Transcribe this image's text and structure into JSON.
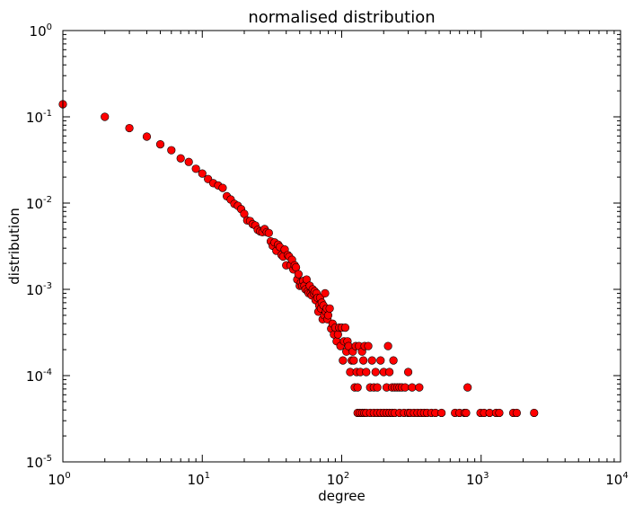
{
  "chart_data": {
    "type": "scatter",
    "title": "normalised distribution",
    "xlabel": "degree",
    "ylabel": "distribution",
    "xscale": "log",
    "yscale": "log",
    "xlim": [
      1,
      10000
    ],
    "ylim": [
      1e-05,
      1
    ],
    "grid": false,
    "marker_color": "#ff0000",
    "marker_edge_color": "#000000",
    "x_ticks": [
      {
        "base": "10",
        "exp": "0"
      },
      {
        "base": "10",
        "exp": "1"
      },
      {
        "base": "10",
        "exp": "2"
      },
      {
        "base": "10",
        "exp": "3"
      },
      {
        "base": "10",
        "exp": "4"
      }
    ],
    "y_ticks": [
      {
        "base": "10",
        "exp": "-5"
      },
      {
        "base": "10",
        "exp": "-4"
      },
      {
        "base": "10",
        "exp": "-3"
      },
      {
        "base": "10",
        "exp": "-2"
      },
      {
        "base": "10",
        "exp": "-1"
      },
      {
        "base": "10",
        "exp": "0"
      }
    ],
    "points": [
      [
        1,
        0.14
      ],
      [
        2,
        0.1
      ],
      [
        3,
        0.074
      ],
      [
        4,
        0.059
      ],
      [
        5,
        0.048
      ],
      [
        6,
        0.041
      ],
      [
        7,
        0.033
      ],
      [
        8,
        0.03
      ],
      [
        9,
        0.025
      ],
      [
        10,
        0.022
      ],
      [
        11,
        0.019
      ],
      [
        12,
        0.017
      ],
      [
        13,
        0.016
      ],
      [
        14,
        0.015
      ],
      [
        15,
        0.012
      ],
      [
        16,
        0.011
      ],
      [
        17,
        0.0098
      ],
      [
        18,
        0.0093
      ],
      [
        19,
        0.0085
      ],
      [
        20,
        0.0075
      ],
      [
        21,
        0.0063
      ],
      [
        22,
        0.0062
      ],
      [
        23,
        0.0057
      ],
      [
        24,
        0.0055
      ],
      [
        25,
        0.0049
      ],
      [
        26,
        0.0047
      ],
      [
        27,
        0.0046
      ],
      [
        28,
        0.005
      ],
      [
        29,
        0.0046
      ],
      [
        30,
        0.0045
      ],
      [
        31,
        0.0036
      ],
      [
        32,
        0.0032
      ],
      [
        33,
        0.0035
      ],
      [
        34,
        0.0028
      ],
      [
        35,
        0.0033
      ],
      [
        36,
        0.0031
      ],
      [
        37,
        0.0025
      ],
      [
        38,
        0.0024
      ],
      [
        39,
        0.0029
      ],
      [
        40,
        0.0019
      ],
      [
        41,
        0.0025
      ],
      [
        42,
        0.0024
      ],
      [
        43,
        0.0019
      ],
      [
        44,
        0.0022
      ],
      [
        45,
        0.0017
      ],
      [
        46,
        0.0019
      ],
      [
        47,
        0.0018
      ],
      [
        48,
        0.0013
      ],
      [
        49,
        0.0015
      ],
      [
        50,
        0.0011
      ],
      [
        51,
        0.0012
      ],
      [
        52,
        0.0011
      ],
      [
        53,
        0.00125
      ],
      [
        54,
        0.0011
      ],
      [
        55,
        0.001
      ],
      [
        56,
        0.0013
      ],
      [
        57,
        0.00095
      ],
      [
        58,
        0.0009
      ],
      [
        59,
        0.0011
      ],
      [
        60,
        0.0009
      ],
      [
        61,
        0.00085
      ],
      [
        62,
        0.001
      ],
      [
        63,
        0.0009
      ],
      [
        64,
        0.00095
      ],
      [
        65,
        0.00075
      ],
      [
        66,
        0.0009
      ],
      [
        67,
        0.0008
      ],
      [
        68,
        0.00055
      ],
      [
        69,
        0.00065
      ],
      [
        70,
        0.0008
      ],
      [
        71,
        0.0006
      ],
      [
        72,
        0.0007
      ],
      [
        73,
        0.00045
      ],
      [
        74,
        0.00065
      ],
      [
        75,
        0.0005
      ],
      [
        76,
        0.0009
      ],
      [
        77,
        0.00055
      ],
      [
        78,
        0.0006
      ],
      [
        79,
        0.00045
      ],
      [
        80,
        0.0005
      ],
      [
        82,
        0.0006
      ],
      [
        84,
        0.00035
      ],
      [
        86,
        0.0004
      ],
      [
        88,
        0.0003
      ],
      [
        90,
        0.00036
      ],
      [
        92,
        0.00025
      ],
      [
        94,
        0.0003
      ],
      [
        96,
        0.00036
      ],
      [
        98,
        0.00022
      ],
      [
        100,
        0.00036
      ],
      [
        102,
        0.00015
      ],
      [
        104,
        0.00025
      ],
      [
        106,
        0.00036
      ],
      [
        108,
        0.00019
      ],
      [
        110,
        0.00025
      ],
      [
        112,
        0.00022
      ],
      [
        115,
        0.00011
      ],
      [
        118,
        0.00015
      ],
      [
        120,
        0.00019
      ],
      [
        122,
        0.00015
      ],
      [
        124,
        7.3e-05
      ],
      [
        126,
        0.00022
      ],
      [
        128,
        0.00011
      ],
      [
        130,
        7.3e-05
      ],
      [
        133,
        0.00022
      ],
      [
        136,
        0.00011
      ],
      [
        140,
        0.00019
      ],
      [
        143,
        0.00015
      ],
      [
        146,
        0.00022
      ],
      [
        150,
        0.00011
      ],
      [
        155,
        0.00022
      ],
      [
        160,
        7.3e-05
      ],
      [
        165,
        0.00015
      ],
      [
        170,
        7.3e-05
      ],
      [
        175,
        0.00011
      ],
      [
        180,
        7.3e-05
      ],
      [
        190,
        0.00015
      ],
      [
        200,
        0.00011
      ],
      [
        210,
        7.3e-05
      ],
      [
        215,
        0.00022
      ],
      [
        220,
        0.00011
      ],
      [
        230,
        7.3e-05
      ],
      [
        235,
        0.00015
      ],
      [
        240,
        7.3e-05
      ],
      [
        250,
        7.3e-05
      ],
      [
        260,
        7.3e-05
      ],
      [
        270,
        7.3e-05
      ],
      [
        285,
        7.3e-05
      ],
      [
        300,
        0.00011
      ],
      [
        320,
        7.3e-05
      ],
      [
        360,
        7.3e-05
      ],
      [
        130,
        3.7e-05
      ],
      [
        135,
        3.7e-05
      ],
      [
        140,
        3.7e-05
      ],
      [
        145,
        3.7e-05
      ],
      [
        150,
        3.7e-05
      ],
      [
        160,
        3.7e-05
      ],
      [
        170,
        3.7e-05
      ],
      [
        180,
        3.7e-05
      ],
      [
        190,
        3.7e-05
      ],
      [
        200,
        3.7e-05
      ],
      [
        210,
        3.7e-05
      ],
      [
        220,
        3.7e-05
      ],
      [
        230,
        3.7e-05
      ],
      [
        240,
        3.7e-05
      ],
      [
        260,
        3.7e-05
      ],
      [
        280,
        3.7e-05
      ],
      [
        300,
        3.7e-05
      ],
      [
        310,
        3.7e-05
      ],
      [
        330,
        3.7e-05
      ],
      [
        350,
        3.7e-05
      ],
      [
        370,
        3.7e-05
      ],
      [
        390,
        3.7e-05
      ],
      [
        410,
        3.7e-05
      ],
      [
        440,
        3.7e-05
      ],
      [
        470,
        3.7e-05
      ],
      [
        520,
        3.7e-05
      ],
      [
        650,
        3.7e-05
      ],
      [
        700,
        3.7e-05
      ],
      [
        760,
        3.7e-05
      ],
      [
        780,
        3.7e-05
      ],
      [
        800,
        7.3e-05
      ],
      [
        990,
        3.7e-05
      ],
      [
        1050,
        3.7e-05
      ],
      [
        1150,
        3.7e-05
      ],
      [
        1280,
        3.7e-05
      ],
      [
        1350,
        3.7e-05
      ],
      [
        1700,
        3.7e-05
      ],
      [
        1800,
        3.7e-05
      ],
      [
        2400,
        3.7e-05
      ]
    ]
  }
}
